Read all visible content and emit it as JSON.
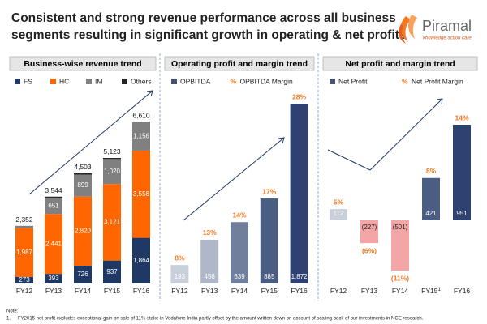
{
  "header": {
    "title_lines": [
      "Consistent and strong revenue performance across all business",
      "segments resulting in significant growth in operating & net profits"
    ],
    "logo": "Piramal",
    "tagline": "knowledge action care"
  },
  "chart_data": [
    {
      "type": "stacked_bar",
      "title": "Business-wise revenue trend",
      "categories": [
        "FY12",
        "FY13",
        "FY14",
        "FY15",
        "FY16"
      ],
      "series": [
        {
          "name": "FS",
          "color": "#1f3864",
          "values": [
            273,
            393,
            726,
            937,
            1864
          ],
          "value_labels": [
            "273",
            "393",
            "726",
            "937",
            "1,864"
          ]
        },
        {
          "name": "HC",
          "color": "#ff6600",
          "values": [
            1987,
            2441,
            2820,
            3121,
            3558
          ],
          "value_labels": [
            "1,987",
            "2,441",
            "2,820",
            "3,121",
            "3,558"
          ]
        },
        {
          "name": "IM",
          "color": "#808080",
          "values": [
            92,
            651,
            899,
            1020,
            1156
          ],
          "value_labels": [
            null,
            "651",
            "899",
            "1,020",
            "1,156"
          ]
        },
        {
          "name": "Others",
          "color": "#262626",
          "values": [
            0,
            59,
            58,
            45,
            32
          ]
        }
      ],
      "totals": {
        "values": [
          2352,
          3544,
          4503,
          5123,
          6610
        ],
        "value_labels": [
          "2,352",
          "3,544",
          "4,503",
          "5,123",
          "6,610"
        ]
      }
    },
    {
      "type": "bar_margin",
      "title": "Operating profit and margin trend",
      "categories": [
        "FY12",
        "FY13",
        "FY14",
        "FY15",
        "FY16"
      ],
      "series": [
        {
          "name": "OPBITDA",
          "color": "#44546a",
          "colors": [
            "#c9d0dc",
            "#aeb8c9",
            "#6f7f9c",
            "#4a5d83",
            "#2e4170"
          ],
          "values": [
            193,
            456,
            639,
            885,
            1872
          ],
          "value_labels": [
            "193",
            "456",
            "639",
            "885",
            "1,872"
          ]
        }
      ],
      "margin": {
        "name": "OPBITDA Margin",
        "symbol": "%",
        "color": "#f47920",
        "values": [
          8,
          13,
          14,
          17,
          28
        ],
        "value_labels": [
          "8%",
          "13%",
          "14%",
          "17%",
          "28%"
        ]
      }
    },
    {
      "type": "bar_margin",
      "title": "Net profit and margin trend",
      "categories": [
        "FY12",
        "FY13",
        "FY14",
        "FY15",
        "FY16"
      ],
      "category_footnotes": [
        null,
        null,
        null,
        "1",
        null
      ],
      "series": [
        {
          "name": "Net Profit",
          "color": "#44546a",
          "colors": [
            "#c9d0dc",
            "#f4a6a6",
            "#f4a6a6",
            "#4a5d83",
            "#2e4170"
          ],
          "values": [
            112,
            -227,
            -501,
            421,
            951
          ],
          "value_labels": [
            "112",
            "(227)",
            "(501)",
            "421",
            "951"
          ]
        }
      ],
      "margin": {
        "name": "Net Profit Margin",
        "symbol": "%",
        "color": "#f47920",
        "values": [
          5,
          -6,
          -11,
          8,
          14
        ],
        "value_labels": [
          "5%",
          "(6%)",
          "(11%)",
          "8%",
          "14%"
        ]
      }
    }
  ],
  "notes": {
    "heading": "Note:",
    "items": [
      {
        "number": "1.",
        "text": "FY2015 net profit excludes exceptional gain on sale of 11% stake in Vodafone India partly offset by the amount written down on account of scaling back of our investments in NCE research."
      }
    ]
  }
}
